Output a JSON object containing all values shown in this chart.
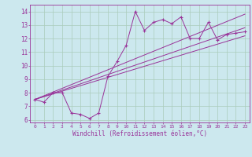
{
  "xlabel": "Windchill (Refroidissement éolien,°C)",
  "bg_color": "#cce8ee",
  "line_color": "#993399",
  "grid_color": "#aaccbb",
  "x_data": [
    0,
    1,
    2,
    3,
    4,
    5,
    6,
    7,
    8,
    9,
    10,
    11,
    12,
    13,
    14,
    15,
    16,
    17,
    18,
    19,
    20,
    21,
    22,
    23
  ],
  "y_main": [
    7.5,
    7.3,
    8.0,
    8.0,
    6.5,
    6.4,
    6.1,
    6.5,
    9.2,
    10.3,
    11.5,
    14.0,
    12.6,
    13.2,
    13.4,
    13.1,
    13.6,
    12.0,
    12.0,
    13.2,
    11.9,
    12.3,
    12.4,
    12.5
  ],
  "reg_lines": [
    {
      "x0": 0,
      "y0": 7.5,
      "x1": 23,
      "y1": 13.8
    },
    {
      "x0": 0,
      "y0": 7.5,
      "x1": 23,
      "y1": 12.8
    },
    {
      "x0": 0,
      "y0": 7.5,
      "x1": 23,
      "y1": 12.2
    }
  ],
  "ylim": [
    5.8,
    14.5
  ],
  "xlim": [
    -0.5,
    23.5
  ],
  "yticks": [
    6,
    7,
    8,
    9,
    10,
    11,
    12,
    13,
    14
  ],
  "xticks": [
    0,
    1,
    2,
    3,
    4,
    5,
    6,
    7,
    8,
    9,
    10,
    11,
    12,
    13,
    14,
    15,
    16,
    17,
    18,
    19,
    20,
    21,
    22,
    23
  ]
}
